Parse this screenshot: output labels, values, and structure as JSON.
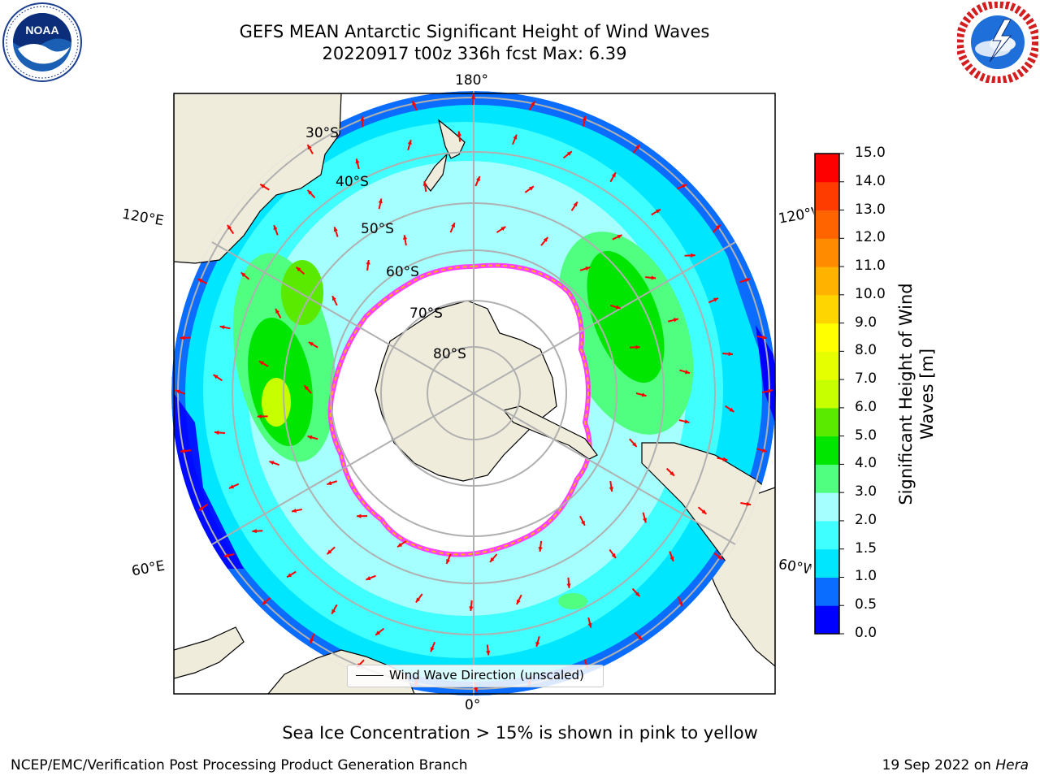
{
  "header": {
    "title_line1": "GEFS MEAN Antarctic Significant Height of Wind Waves",
    "title_line2": "20220917 t00z 336h fcst   Max: 6.39"
  },
  "logos": {
    "left": "noaa-logo",
    "right": "national-weather-service-logo"
  },
  "map": {
    "projection": "south-polar-stereographic",
    "longitude_labels": {
      "top": "180°",
      "bottom": "0°",
      "upper_left": "120°E",
      "lower_left": "60°E",
      "upper_right": "120°W",
      "lower_right": "60°W"
    },
    "latitude_labels": [
      "30°S",
      "40°S",
      "50°S",
      "60°S",
      "70°S",
      "80°S"
    ],
    "legend_label": "Wind Wave Direction (unscaled)",
    "arrow_color": "#ff0000",
    "land_color": "#efecdc"
  },
  "colorbar": {
    "title_line1": "Significant Height of Wind",
    "title_line2": "Waves [m]",
    "ticks": [
      "0.0",
      "0.5",
      "1.0",
      "1.5",
      "2.0",
      "3.0",
      "4.0",
      "5.0",
      "6.0",
      "7.0",
      "8.0",
      "9.0",
      "10.0",
      "11.0",
      "12.0",
      "13.0",
      "14.0",
      "15.0"
    ],
    "colors": [
      "#0000ff",
      "#0a6dff",
      "#00e6ff",
      "#40ffff",
      "#a5ffff",
      "#50ff80",
      "#00e600",
      "#5aea00",
      "#c8ff00",
      "#e6ff00",
      "#ffff00",
      "#ffd500",
      "#ffb300",
      "#ff8c00",
      "#ff6400",
      "#ff3c00",
      "#ff0000"
    ]
  },
  "caption": "Sea Ice Concentration > 15% is shown in pink to yellow",
  "footer": {
    "left": "NCEP/EMC/Verification Post Processing Product Generation Branch",
    "right_date": "19 Sep 2022 on ",
    "right_host": "Hera"
  }
}
